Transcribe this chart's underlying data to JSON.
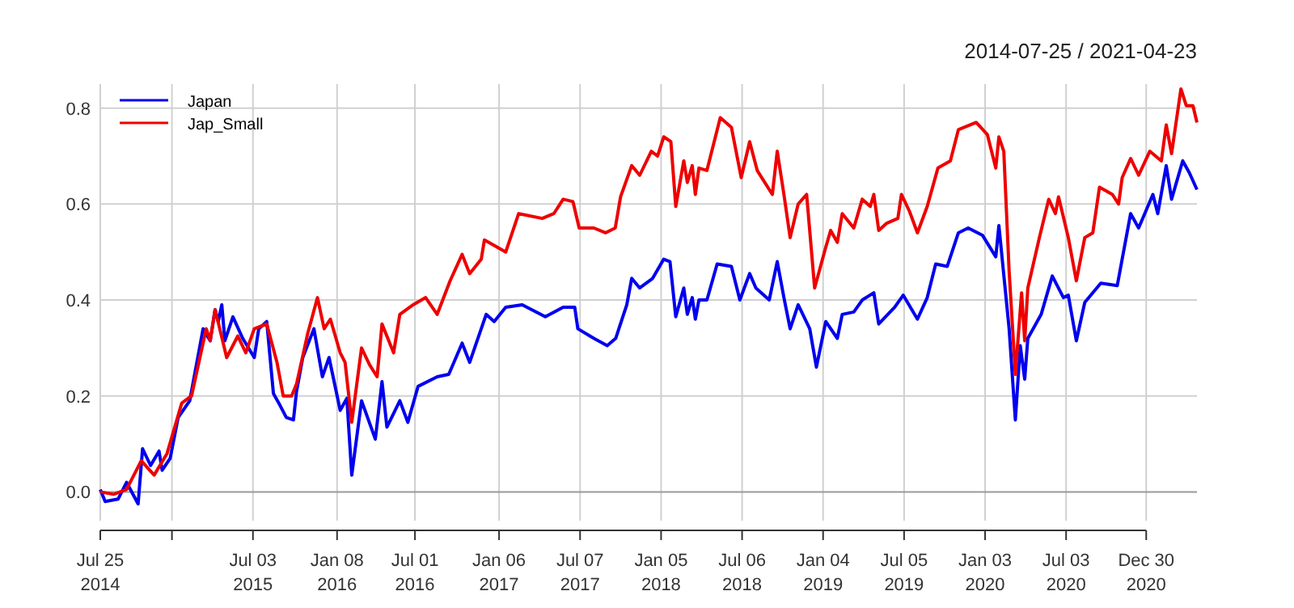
{
  "chart_data": {
    "type": "line",
    "title": "2014-07-25 / 2021-04-23",
    "xlim": [
      "2014-07-25",
      "2021-04-23"
    ],
    "ylim": [
      -0.06,
      0.85
    ],
    "yticks": [
      {
        "value": 0,
        "label": "0.0"
      },
      0.2,
      0.4,
      0.6,
      0.8
    ],
    "xticks": [
      {
        "value": "2014-07-25",
        "label": "Jul 25\n2014"
      },
      {
        "value": "2015-01-02",
        "label": null
      },
      {
        "value": "2015-07-03",
        "label": "Jul 03\n2015"
      },
      {
        "value": "2016-01-08",
        "label": "Jan 08\n2016"
      },
      {
        "value": "2016-07-01",
        "label": "Jul 01\n2016"
      },
      {
        "value": "2017-01-06",
        "label": "Jan 06\n2017"
      },
      {
        "value": "2017-07-07",
        "label": "Jul 07\n2017"
      },
      {
        "value": "2018-01-05",
        "label": "Jan 05\n2018"
      },
      {
        "value": "2018-07-06",
        "label": "Jul 06\n2018"
      },
      {
        "value": "2019-01-04",
        "label": "Jan 04\n2019"
      },
      {
        "value": "2019-07-05",
        "label": "Jul 05\n2019"
      },
      {
        "value": "2020-01-03",
        "label": "Jan 03\n2020"
      },
      {
        "value": "2020-07-03",
        "label": "Jul 03\n2020"
      },
      {
        "value": "2020-12-30",
        "label": "Dec 30\n2020"
      }
    ],
    "grid": true,
    "legend": "top left",
    "marker": "none",
    "line_style": "solid",
    "series": [
      {
        "name": "Japan",
        "color": "#0000ee",
        "x": [
          "2014-07-25",
          "2014-08-05",
          "2014-09-03",
          "2014-09-22",
          "2014-10-18",
          "2014-10-28",
          "2014-11-15",
          "2014-12-04",
          "2014-12-11",
          "2014-12-29",
          "2015-01-16",
          "2015-02-11",
          "2015-03-13",
          "2015-03-29",
          "2015-04-09",
          "2015-04-16",
          "2015-04-24",
          "2015-05-01",
          "2015-05-19",
          "2015-06-10",
          "2015-07-06",
          "2015-07-16",
          "2015-08-03",
          "2015-08-18",
          "2015-09-02",
          "2015-09-16",
          "2015-10-02",
          "2015-10-09",
          "2015-10-23",
          "2015-11-17",
          "2015-12-06",
          "2015-12-21",
          "2016-01-15",
          "2016-01-30",
          "2016-02-10",
          "2016-03-03",
          "2016-04-03",
          "2016-04-18",
          "2016-04-29",
          "2016-05-28",
          "2016-06-15",
          "2016-07-08",
          "2016-08-20",
          "2016-09-15",
          "2016-10-15",
          "2016-11-01",
          "2016-12-08",
          "2016-12-26",
          "2017-01-21",
          "2017-02-27",
          "2017-04-20",
          "2017-05-30",
          "2017-06-25",
          "2017-07-02",
          "2017-08-07",
          "2017-09-06",
          "2017-09-25",
          "2017-10-20",
          "2017-10-31",
          "2017-11-18",
          "2017-12-17",
          "2018-01-11",
          "2018-01-25",
          "2018-02-07",
          "2018-02-25",
          "2018-03-05",
          "2018-03-16",
          "2018-03-23",
          "2018-03-31",
          "2018-04-18",
          "2018-05-11",
          "2018-06-12",
          "2018-07-01",
          "2018-07-23",
          "2018-08-06",
          "2018-09-05",
          "2018-09-23",
          "2018-10-08",
          "2018-10-22",
          "2018-11-09",
          "2018-12-05",
          "2018-12-20",
          "2019-01-10",
          "2019-02-05",
          "2019-02-16",
          "2019-03-14",
          "2019-04-02",
          "2019-04-28",
          "2019-05-09",
          "2019-06-14",
          "2019-07-03",
          "2019-08-04",
          "2019-08-26",
          "2019-09-14",
          "2019-10-10",
          "2019-11-04",
          "2019-11-26",
          "2019-12-28",
          "2020-01-27",
          "2020-02-03",
          "2020-02-26",
          "2020-03-11",
          "2020-03-22",
          "2020-04-01",
          "2020-04-08",
          "2020-05-08",
          "2020-06-02",
          "2020-06-27",
          "2020-07-08",
          "2020-07-26",
          "2020-08-14",
          "2020-09-19",
          "2020-10-26",
          "2020-11-25",
          "2020-12-13",
          "2021-01-14",
          "2021-01-25",
          "2021-02-13",
          "2021-02-25",
          "2021-03-22",
          "2021-04-06",
          "2021-04-23"
        ],
        "values": [
          0.005,
          -0.02,
          -0.015,
          0.02,
          -0.025,
          0.09,
          0.055,
          0.085,
          0.045,
          0.07,
          0.155,
          0.19,
          0.34,
          0.315,
          0.38,
          0.355,
          0.39,
          0.315,
          0.365,
          0.32,
          0.28,
          0.34,
          0.355,
          0.205,
          0.18,
          0.155,
          0.15,
          0.21,
          0.28,
          0.34,
          0.24,
          0.28,
          0.17,
          0.195,
          0.035,
          0.19,
          0.11,
          0.23,
          0.135,
          0.19,
          0.145,
          0.22,
          0.24,
          0.245,
          0.31,
          0.27,
          0.37,
          0.355,
          0.385,
          0.39,
          0.365,
          0.385,
          0.385,
          0.34,
          0.32,
          0.305,
          0.32,
          0.39,
          0.445,
          0.425,
          0.445,
          0.485,
          0.48,
          0.365,
          0.425,
          0.37,
          0.405,
          0.36,
          0.4,
          0.4,
          0.475,
          0.47,
          0.4,
          0.455,
          0.425,
          0.4,
          0.48,
          0.405,
          0.34,
          0.39,
          0.34,
          0.26,
          0.355,
          0.32,
          0.37,
          0.375,
          0.4,
          0.415,
          0.35,
          0.385,
          0.41,
          0.36,
          0.405,
          0.475,
          0.47,
          0.54,
          0.55,
          0.535,
          0.49,
          0.555,
          0.34,
          0.15,
          0.305,
          0.235,
          0.32,
          0.37,
          0.45,
          0.405,
          0.41,
          0.315,
          0.395,
          0.435,
          0.43,
          0.58,
          0.55,
          0.62,
          0.58,
          0.68,
          0.61,
          0.69,
          0.665,
          0.63
        ]
      },
      {
        "name": "Jap_Small",
        "color": "#ee0000",
        "x": [
          "2014-07-25",
          "2014-08-24",
          "2014-09-22",
          "2014-10-25",
          "2014-11-23",
          "2014-12-22",
          "2015-01-24",
          "2015-02-15",
          "2015-03-20",
          "2015-03-29",
          "2015-04-09",
          "2015-05-05",
          "2015-05-30",
          "2015-06-17",
          "2015-07-06",
          "2015-08-03",
          "2015-08-26",
          "2015-09-09",
          "2015-09-28",
          "2015-10-09",
          "2015-11-03",
          "2015-11-25",
          "2015-12-10",
          "2015-12-24",
          "2016-01-15",
          "2016-01-26",
          "2016-02-10",
          "2016-03-03",
          "2016-03-21",
          "2016-04-07",
          "2016-04-18",
          "2016-05-14",
          "2016-05-28",
          "2016-06-27",
          "2016-07-25",
          "2016-08-20",
          "2016-09-18",
          "2016-10-15",
          "2016-11-01",
          "2016-11-27",
          "2016-12-04",
          "2017-01-02",
          "2017-01-21",
          "2017-02-19",
          "2017-04-13",
          "2017-05-09",
          "2017-05-30",
          "2017-06-21",
          "2017-07-05",
          "2017-08-07",
          "2017-09-02",
          "2017-09-24",
          "2017-10-06",
          "2017-10-31",
          "2017-11-18",
          "2017-12-14",
          "2017-12-28",
          "2018-01-11",
          "2018-01-27",
          "2018-02-07",
          "2018-02-25",
          "2018-03-05",
          "2018-03-16",
          "2018-03-23",
          "2018-03-31",
          "2018-04-18",
          "2018-05-18",
          "2018-06-12",
          "2018-07-04",
          "2018-07-23",
          "2018-08-09",
          "2018-09-12",
          "2018-09-23",
          "2018-10-08",
          "2018-10-22",
          "2018-11-09",
          "2018-11-28",
          "2018-12-16",
          "2019-01-10",
          "2019-01-21",
          "2019-02-05",
          "2019-02-16",
          "2019-03-14",
          "2019-04-02",
          "2019-04-20",
          "2019-04-28",
          "2019-05-09",
          "2019-05-27",
          "2019-06-21",
          "2019-06-29",
          "2019-07-17",
          "2019-08-04",
          "2019-08-26",
          "2019-09-19",
          "2019-10-17",
          "2019-11-04",
          "2019-12-14",
          "2020-01-08",
          "2020-01-27",
          "2020-02-03",
          "2020-02-14",
          "2020-02-26",
          "2020-03-11",
          "2020-03-25",
          "2020-04-01",
          "2020-04-08",
          "2020-05-04",
          "2020-05-25",
          "2020-06-09",
          "2020-06-16",
          "2020-07-08",
          "2020-07-26",
          "2020-08-14",
          "2020-09-01",
          "2020-09-16",
          "2020-10-15",
          "2020-10-29",
          "2020-11-06",
          "2020-11-25",
          "2020-12-13",
          "2021-01-07",
          "2021-02-02",
          "2021-02-13",
          "2021-02-25",
          "2021-03-18",
          "2021-03-30",
          "2021-04-14",
          "2021-04-23"
        ],
        "values": [
          0,
          -0.005,
          0.005,
          0.065,
          0.035,
          0.08,
          0.185,
          0.2,
          0.34,
          0.315,
          0.38,
          0.28,
          0.325,
          0.29,
          0.34,
          0.35,
          0.27,
          0.2,
          0.2,
          0.225,
          0.33,
          0.405,
          0.34,
          0.36,
          0.29,
          0.27,
          0.145,
          0.3,
          0.265,
          0.24,
          0.35,
          0.29,
          0.37,
          0.39,
          0.405,
          0.37,
          0.44,
          0.495,
          0.455,
          0.485,
          0.525,
          0.51,
          0.5,
          0.58,
          0.57,
          0.58,
          0.61,
          0.605,
          0.55,
          0.55,
          0.54,
          0.55,
          0.615,
          0.68,
          0.66,
          0.71,
          0.7,
          0.74,
          0.73,
          0.595,
          0.69,
          0.645,
          0.68,
          0.62,
          0.675,
          0.67,
          0.78,
          0.76,
          0.655,
          0.73,
          0.67,
          0.62,
          0.71,
          0.62,
          0.53,
          0.6,
          0.62,
          0.425,
          0.51,
          0.545,
          0.52,
          0.58,
          0.55,
          0.61,
          0.595,
          0.62,
          0.545,
          0.56,
          0.57,
          0.62,
          0.585,
          0.54,
          0.595,
          0.675,
          0.69,
          0.755,
          0.77,
          0.745,
          0.675,
          0.74,
          0.71,
          0.46,
          0.245,
          0.415,
          0.315,
          0.425,
          0.53,
          0.61,
          0.58,
          0.615,
          0.53,
          0.44,
          0.53,
          0.54,
          0.635,
          0.62,
          0.6,
          0.655,
          0.695,
          0.66,
          0.71,
          0.69,
          0.765,
          0.705,
          0.84,
          0.805,
          0.805,
          0.77
        ]
      }
    ]
  }
}
